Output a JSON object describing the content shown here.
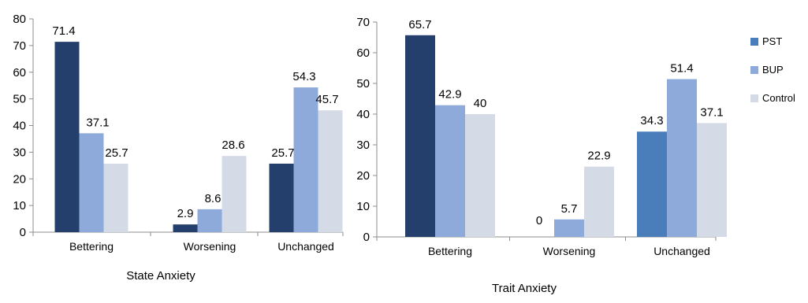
{
  "chart_data": [
    {
      "type": "bar",
      "title": "State Anxiety",
      "categories": [
        "Bettering",
        "Worsening",
        "Unchanged"
      ],
      "ylim": [
        0,
        80
      ],
      "yticks": [
        0,
        10,
        20,
        30,
        40,
        50,
        60,
        70,
        80
      ],
      "grid": false,
      "series": [
        {
          "name": "PST",
          "values": [
            71.4,
            2.9,
            25.7
          ]
        },
        {
          "name": "BUP",
          "values": [
            37.1,
            8.6,
            54.3
          ]
        },
        {
          "name": "Control",
          "values": [
            25.7,
            28.6,
            45.7
          ]
        }
      ]
    },
    {
      "type": "bar",
      "title": "Trait  Anxiety",
      "categories": [
        "Bettering",
        "Worsening",
        "Unchanged"
      ],
      "ylim": [
        0,
        70
      ],
      "yticks": [
        0,
        10,
        20,
        30,
        40,
        50,
        60,
        70
      ],
      "grid": false,
      "legend": "right",
      "series": [
        {
          "name": "PST",
          "values": [
            65.7,
            0,
            34.3
          ]
        },
        {
          "name": "BUP",
          "values": [
            42.9,
            5.7,
            51.4
          ]
        },
        {
          "name": "Control",
          "values": [
            40,
            22.9,
            37.1
          ]
        }
      ]
    }
  ],
  "legend": {
    "items": [
      {
        "label": "PST",
        "color": "#4a7ebb"
      },
      {
        "label": "BUP",
        "color": "#8eaadb"
      },
      {
        "label": "Control",
        "color": "#d5dbe6"
      }
    ]
  },
  "colors": {
    "pst_dark": "#243f6b",
    "pst_unchanged_trait": "#4a7ebb",
    "bup": "#8eaadb",
    "control": "#d5dbe6",
    "axis": "#8c8c8c"
  }
}
